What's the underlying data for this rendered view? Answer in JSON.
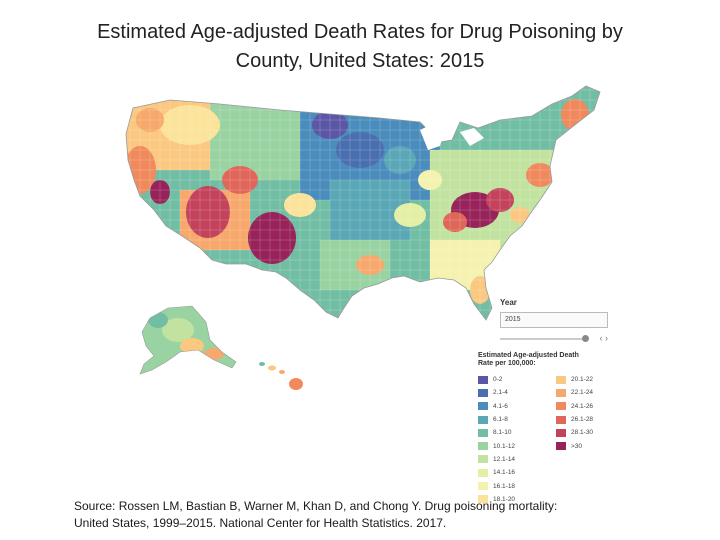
{
  "title_line1": "Estimated Age-adjusted Death Rates for Drug Poisoning by",
  "title_line2": "County, United States:  2015",
  "year_control": {
    "label": "Year",
    "value": "2015"
  },
  "legend": {
    "title": "Estimated Age-adjusted Death Rate per 100,000:",
    "items": [
      {
        "label": "0-2",
        "color": "#5b57a6"
      },
      {
        "label": "2.1-4",
        "color": "#4a6fb0"
      },
      {
        "label": "4.1-6",
        "color": "#4a8cbc"
      },
      {
        "label": "6.1-8",
        "color": "#5aa7b6"
      },
      {
        "label": "8.1-10",
        "color": "#72bea4"
      },
      {
        "label": "10.1-12",
        "color": "#99d3a2"
      },
      {
        "label": "12.1-14",
        "color": "#c2e39f"
      },
      {
        "label": "14.1-16",
        "color": "#e3efa4"
      },
      {
        "label": "16.1-18",
        "color": "#f5f2b0"
      },
      {
        "label": "18.1-20",
        "color": "#fce39a"
      },
      {
        "label": "20.1-22",
        "color": "#fbc881"
      },
      {
        "label": "22.1-24",
        "color": "#f7a86c"
      },
      {
        "label": "24.1-26",
        "color": "#f08a5d"
      },
      {
        "label": "26.1-28",
        "color": "#e0665a"
      },
      {
        "label": "28.1-30",
        "color": "#c3435c"
      },
      {
        "label": ">30",
        "color": "#98225a"
      }
    ]
  },
  "source_line1": "Source: Rossen LM, Bastian B, Warner M, Khan D, and Chong Y. Drug poisoning mortality:",
  "source_line2": "United States, 1999–2015. National Center for Health Statistics. 2017."
}
